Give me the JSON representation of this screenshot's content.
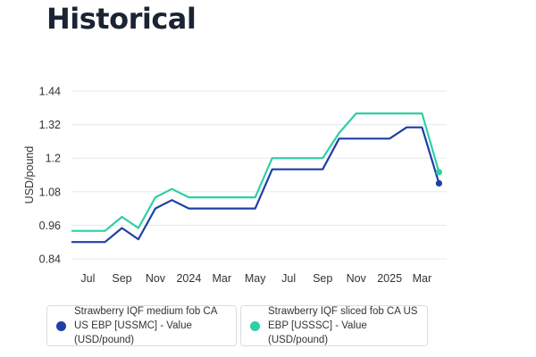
{
  "header": {
    "title": "Historical"
  },
  "colors": {
    "series_medium": "#1f3fa6",
    "series_sliced": "#2fcfa6",
    "grid": "#e6e8eb",
    "text": "#333333"
  },
  "legend": [
    {
      "text": "Strawberry IQF medium fob CA US EBP [USSMC] - Value (USD/pound)",
      "color": "#1f3fa6"
    },
    {
      "text": "Strawberry IQF sliced fob CA US EBP [USSSC] - Value (USD/pound)",
      "color": "#2fcfa6"
    }
  ],
  "chart_data": {
    "type": "line",
    "title": "Historical",
    "xlabel": "",
    "ylabel": "USD/pound",
    "x_tick_labels": [
      "Jul",
      "Sep",
      "Nov",
      "2024",
      "Mar",
      "May",
      "Jul",
      "Sep",
      "Nov",
      "2025",
      "Mar"
    ],
    "y_ticks": [
      0.84,
      0.96,
      1.08,
      1.2,
      1.32,
      1.44
    ],
    "y_tick_labels": [
      "0.84",
      "0.96",
      "1.08",
      "1.2",
      "1.32",
      "1.44"
    ],
    "ylim": [
      0.84,
      1.44
    ],
    "xlim": [
      "2023-06-01",
      "2025-04-15"
    ],
    "grid": "horizontal",
    "legend_position": "bottom",
    "series": [
      {
        "name": "Strawberry IQF medium fob CA US EBP [USSMC] - Value (USD/pound)",
        "color": "#1f3fa6",
        "points": [
          [
            "2023-06-01",
            0.9
          ],
          [
            "2023-07-15",
            0.9
          ],
          [
            "2023-08-01",
            0.9
          ],
          [
            "2023-09-01",
            0.95
          ],
          [
            "2023-10-01",
            0.91
          ],
          [
            "2023-11-01",
            1.02
          ],
          [
            "2023-12-01",
            1.05
          ],
          [
            "2024-01-01",
            1.02
          ],
          [
            "2024-02-01",
            1.02
          ],
          [
            "2024-03-01",
            1.02
          ],
          [
            "2024-04-01",
            1.02
          ],
          [
            "2024-05-01",
            1.02
          ],
          [
            "2024-06-01",
            1.16
          ],
          [
            "2024-07-01",
            1.16
          ],
          [
            "2024-08-01",
            1.16
          ],
          [
            "2024-09-01",
            1.16
          ],
          [
            "2024-10-01",
            1.27
          ],
          [
            "2024-11-01",
            1.27
          ],
          [
            "2024-12-01",
            1.27
          ],
          [
            "2025-01-01",
            1.27
          ],
          [
            "2025-02-01",
            1.31
          ],
          [
            "2025-03-01",
            1.31
          ],
          [
            "2025-04-01",
            1.11
          ]
        ],
        "highlight_last": true
      },
      {
        "name": "Strawberry IQF sliced fob CA US EBP [USSSC] - Value (USD/pound)",
        "color": "#2fcfa6",
        "points": [
          [
            "2023-06-01",
            0.94
          ],
          [
            "2023-07-15",
            0.94
          ],
          [
            "2023-08-01",
            0.94
          ],
          [
            "2023-09-01",
            0.99
          ],
          [
            "2023-10-01",
            0.95
          ],
          [
            "2023-11-01",
            1.06
          ],
          [
            "2023-12-01",
            1.09
          ],
          [
            "2024-01-01",
            1.06
          ],
          [
            "2024-02-01",
            1.06
          ],
          [
            "2024-03-01",
            1.06
          ],
          [
            "2024-04-01",
            1.06
          ],
          [
            "2024-05-01",
            1.06
          ],
          [
            "2024-06-01",
            1.2
          ],
          [
            "2024-07-01",
            1.2
          ],
          [
            "2024-08-01",
            1.2
          ],
          [
            "2024-09-01",
            1.2
          ],
          [
            "2024-10-01",
            1.29
          ],
          [
            "2024-11-01",
            1.36
          ],
          [
            "2024-12-01",
            1.36
          ],
          [
            "2025-01-01",
            1.36
          ],
          [
            "2025-02-01",
            1.36
          ],
          [
            "2025-03-01",
            1.36
          ],
          [
            "2025-04-01",
            1.15
          ]
        ],
        "highlight_last": true
      }
    ]
  }
}
